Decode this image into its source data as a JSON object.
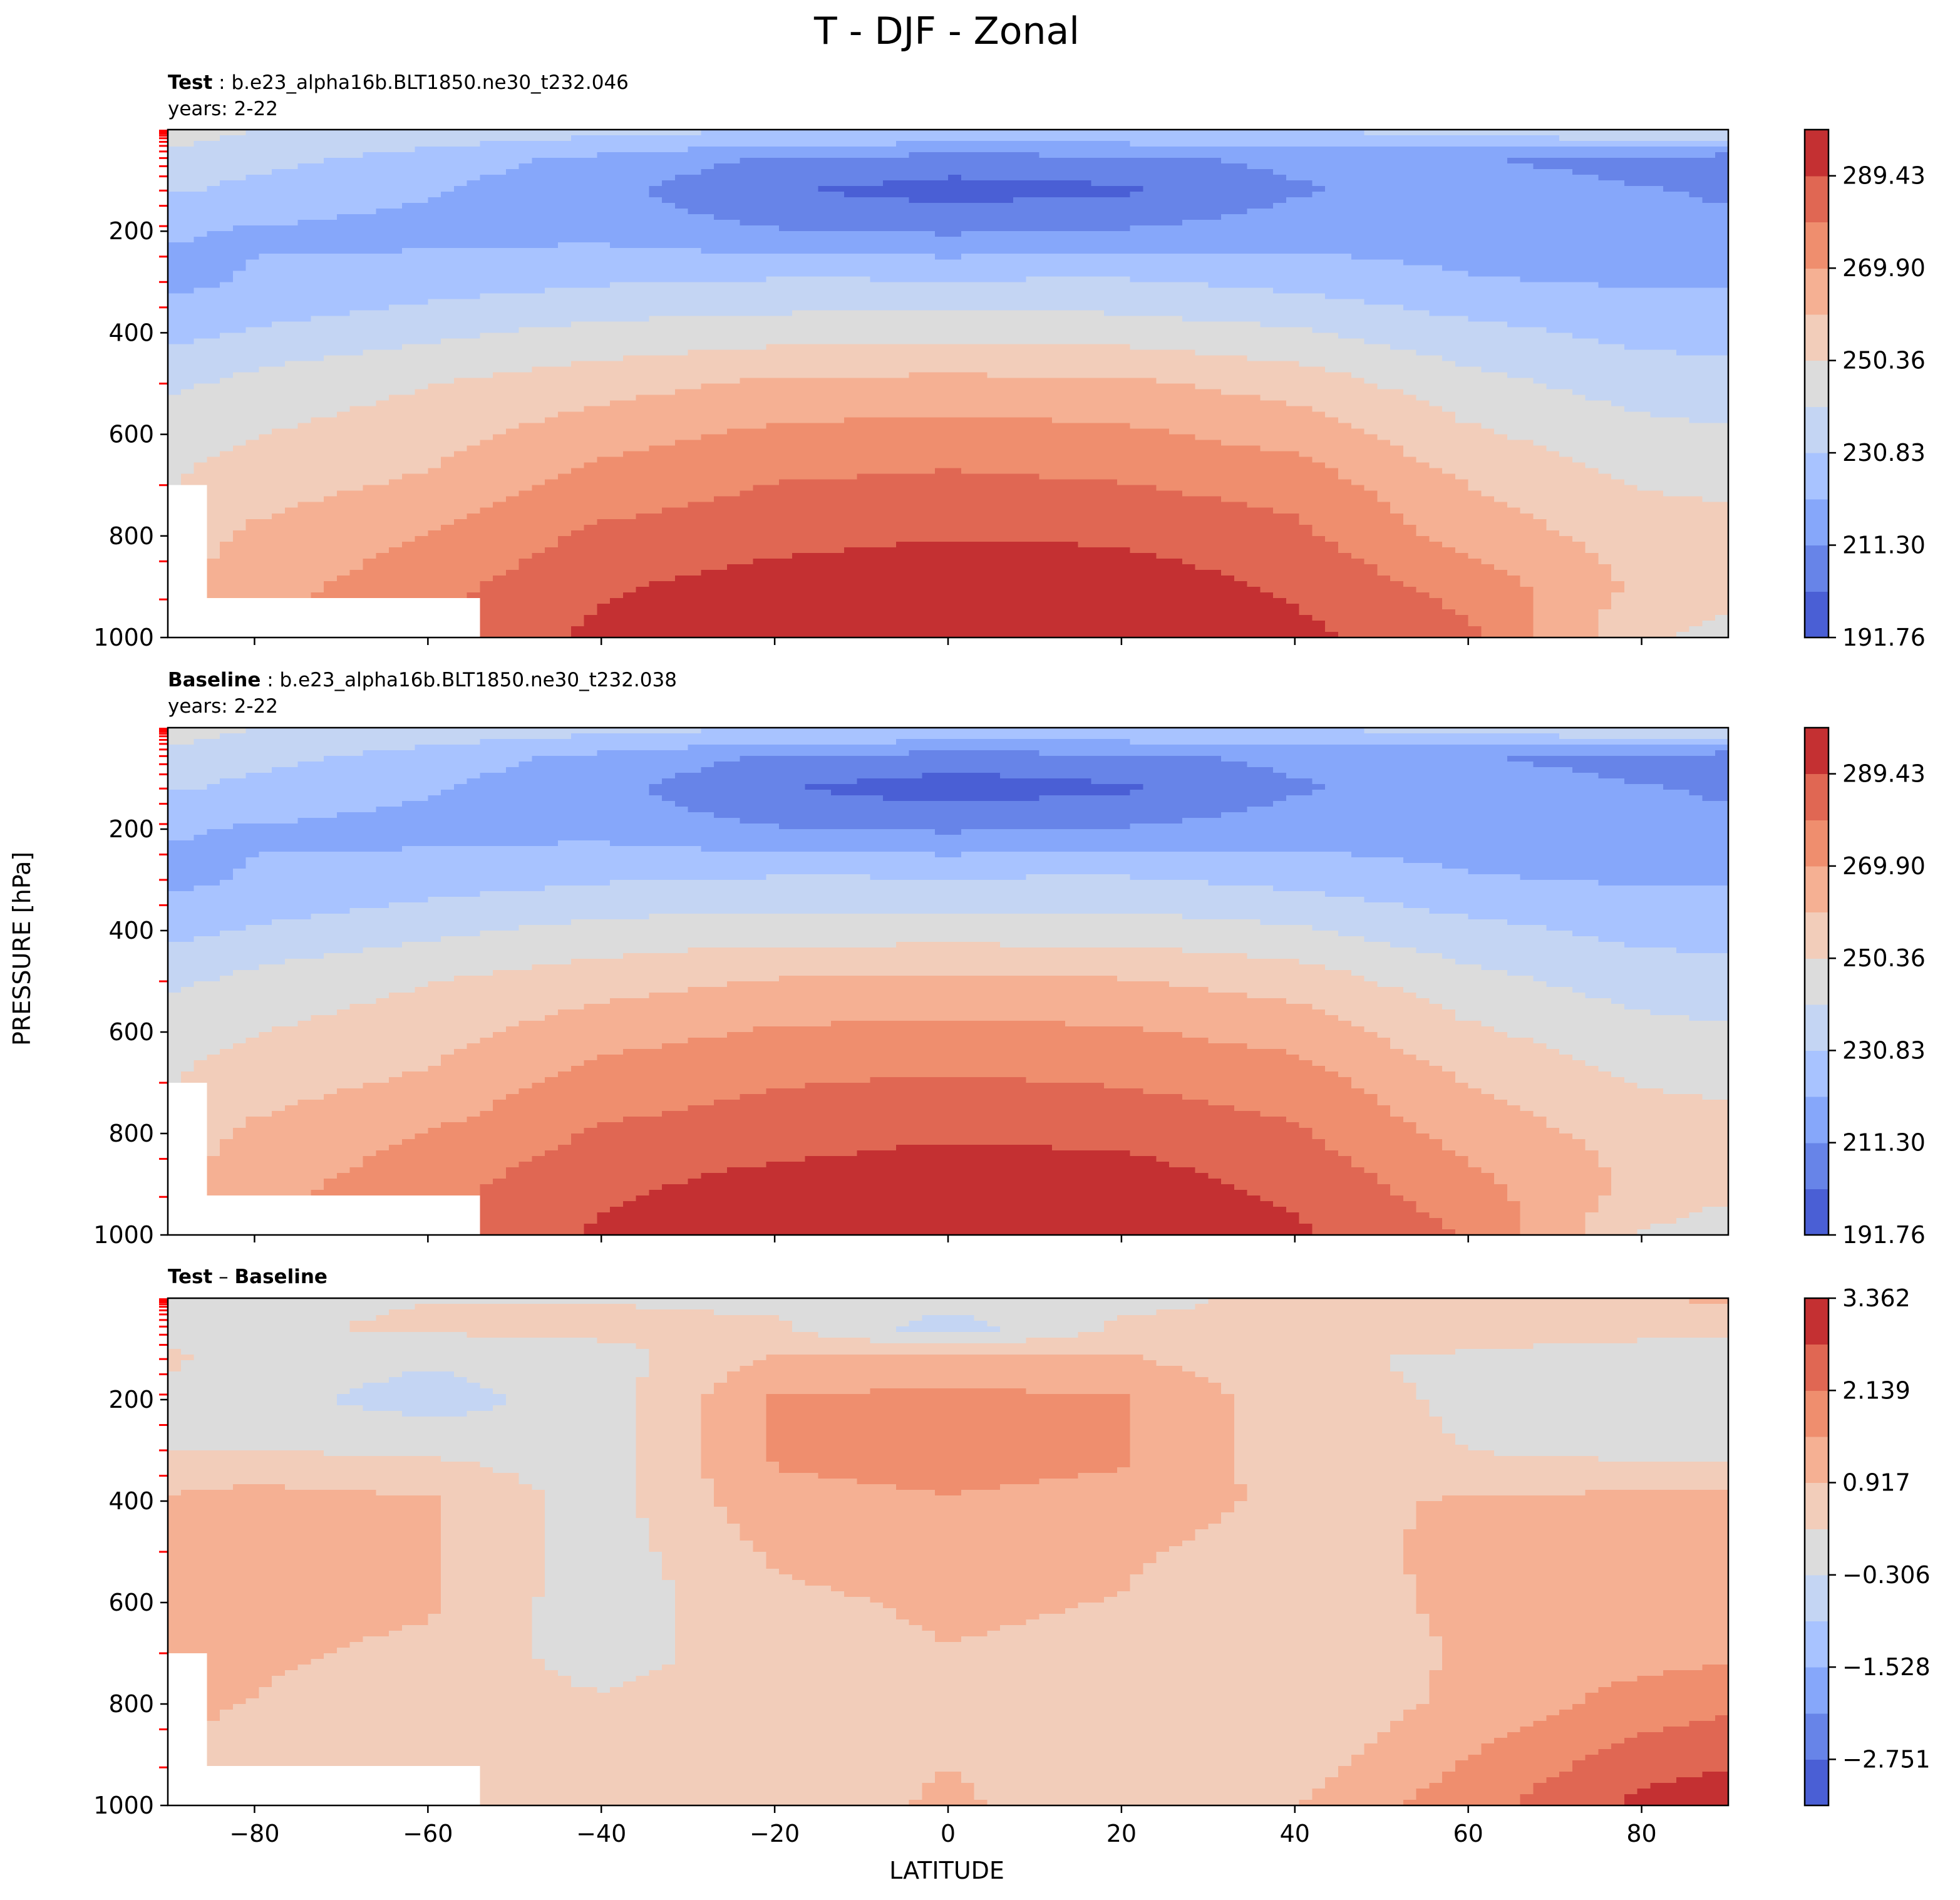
{
  "figure": {
    "title": "T - DJF - Zonal",
    "xlabel": "LATITUDE",
    "ylabel": "PRESSURE [hPa]"
  },
  "colors": {
    "test_baseline": [
      "#4a5fd5",
      "#6784e8",
      "#86a7fa",
      "#a8c3ff",
      "#c4d5f3",
      "#dcdcdc",
      "#f2cdba",
      "#f5b093",
      "#ef8e6e",
      "#e06753",
      "#c43032"
    ],
    "diff": [
      "#4a5fd5",
      "#6784e8",
      "#86a7fa",
      "#a8c3ff",
      "#c4d5f3",
      "#dcdcdc",
      "#f2cdba",
      "#f5b093",
      "#ef8e6e",
      "#e06753",
      "#c43032"
    ],
    "missing": "#ffffff",
    "level_ticks": "#ff0000"
  },
  "chart_data": [
    {
      "type": "heatmap",
      "name": "test",
      "label_bold": "Test",
      "label_sep": " : ",
      "case": "b.e23_alpha16b.BLT1850.ne30_t232.046",
      "years": "years: 2-22",
      "xlim": [
        -90,
        90
      ],
      "ylim": [
        1000,
        0
      ],
      "x_ticks": [
        -80,
        -60,
        -40,
        -20,
        0,
        20,
        40,
        60,
        80
      ],
      "y_ticks": [
        200,
        400,
        600,
        800,
        1000
      ],
      "y_tick_labels": [
        "200",
        "400",
        "600",
        "800",
        "1000"
      ],
      "colorbar_min": 191.76,
      "colorbar_max": 299.2,
      "colorbar_ticks": [
        191.76,
        211.3,
        230.83,
        250.36,
        269.9,
        289.43
      ],
      "colorbar_tick_labels": [
        "191.76",
        "211.30",
        "230.83",
        "250.36",
        "269.90",
        "289.43"
      ],
      "field": {
        "lat": [
          -90,
          -80,
          -60,
          -40,
          -20,
          0,
          20,
          40,
          60,
          80,
          90
        ],
        "lev": [
          10,
          60,
          120,
          200,
          300,
          400,
          500,
          600,
          700,
          800,
          900,
          1000
        ],
        "values": [
          [
            244,
            240,
            236,
            232,
            230,
            228,
            228,
            230,
            232,
            236,
            238
          ],
          [
            238,
            234,
            226,
            218,
            210,
            206,
            208,
            214,
            212,
            208,
            204
          ],
          [
            232,
            228,
            222,
            214,
            202,
            198,
            200,
            210,
            216,
            212,
            210
          ],
          [
            222,
            220,
            218,
            218,
            212,
            210,
            212,
            216,
            216,
            214,
            214
          ],
          [
            218,
            222,
            226,
            230,
            232,
            232,
            232,
            228,
            222,
            220,
            220
          ],
          [
            228,
            232,
            238,
            244,
            246,
            247,
            246,
            242,
            234,
            228,
            228
          ],
          [
            238,
            244,
            250,
            256,
            262,
            263,
            262,
            256,
            244,
            236,
            234
          ],
          [
            246,
            250,
            256,
            266,
            272,
            274,
            272,
            266,
            252,
            244,
            242
          ],
          [
            250,
            256,
            262,
            274,
            280,
            282,
            280,
            276,
            260,
            250,
            248
          ],
          [
            254,
            262,
            270,
            282,
            286,
            289,
            288,
            282,
            266,
            256,
            254
          ],
          [
            260,
            266,
            276,
            288,
            294,
            297,
            295,
            288,
            276,
            258,
            256
          ],
          [
            264,
            270,
            280,
            292,
            298,
            300,
            300,
            292,
            282,
            252,
            246
          ]
        ],
        "missing": [
          {
            "lat_max": -85,
            "lev_min": 700
          },
          {
            "lat_max": -54,
            "lev_min": 925
          }
        ]
      }
    },
    {
      "type": "heatmap",
      "name": "baseline",
      "label_bold": "Baseline",
      "label_sep": " : ",
      "case": "b.e23_alpha16b.BLT1850.ne30_t232.038",
      "years": "years: 2-22",
      "xlim": [
        -90,
        90
      ],
      "ylim": [
        1000,
        0
      ],
      "x_ticks": [
        -80,
        -60,
        -40,
        -20,
        0,
        20,
        40,
        60,
        80
      ],
      "y_ticks": [
        200,
        400,
        600,
        800,
        1000
      ],
      "y_tick_labels": [
        "200",
        "400",
        "600",
        "800",
        "1000"
      ],
      "colorbar_min": 191.76,
      "colorbar_max": 299.2,
      "colorbar_ticks": [
        191.76,
        211.3,
        230.83,
        250.36,
        269.9,
        289.43
      ],
      "colorbar_tick_labels": [
        "191.76",
        "211.30",
        "230.83",
        "250.36",
        "269.90",
        "289.43"
      ],
      "field": {
        "lat": [
          -90,
          -80,
          -60,
          -40,
          -20,
          0,
          20,
          40,
          60,
          80,
          90
        ],
        "lev": [
          10,
          60,
          120,
          200,
          300,
          400,
          500,
          600,
          700,
          800,
          900,
          1000
        ],
        "values": [
          [
            244,
            240,
            236,
            232,
            230,
            228,
            228,
            230,
            232,
            236,
            238
          ],
          [
            238,
            234,
            226,
            218,
            210,
            206,
            208,
            214,
            212,
            208,
            204
          ],
          [
            232,
            228,
            222,
            214,
            202,
            197,
            200,
            210,
            216,
            212,
            210
          ],
          [
            222,
            220,
            218,
            218,
            212,
            210,
            212,
            216,
            216,
            214,
            214
          ],
          [
            218,
            222,
            226,
            230,
            232,
            232,
            232,
            228,
            222,
            220,
            220
          ],
          [
            228,
            232,
            238,
            244,
            246,
            246,
            246,
            242,
            234,
            228,
            228
          ],
          [
            238,
            244,
            250,
            256,
            261,
            262,
            261,
            256,
            244,
            236,
            234
          ],
          [
            246,
            250,
            256,
            266,
            271,
            273,
            271,
            266,
            252,
            244,
            242
          ],
          [
            250,
            256,
            262,
            274,
            279,
            281,
            279,
            275,
            260,
            250,
            248
          ],
          [
            254,
            262,
            270,
            281,
            285,
            288,
            287,
            281,
            266,
            256,
            254
          ],
          [
            260,
            266,
            276,
            287,
            293,
            296,
            294,
            287,
            273,
            258,
            254
          ],
          [
            264,
            270,
            280,
            291,
            297,
            299,
            299,
            291,
            279,
            250,
            244
          ]
        ],
        "missing": [
          {
            "lat_max": -85,
            "lev_min": 700
          },
          {
            "lat_max": -54,
            "lev_min": 925
          }
        ]
      }
    },
    {
      "type": "heatmap",
      "name": "difference",
      "label_bold_a": "Test",
      "label_op": " – ",
      "label_bold_b": "Baseline",
      "xlim": [
        -90,
        90
      ],
      "ylim": [
        1000,
        0
      ],
      "x_ticks": [
        -80,
        -60,
        -40,
        -20,
        0,
        20,
        40,
        60,
        80
      ],
      "x_tick_labels": [
        "−80",
        "−60",
        "−40",
        "−20",
        "0",
        "20",
        "40",
        "60",
        "80"
      ],
      "y_ticks": [
        200,
        400,
        600,
        800,
        1000
      ],
      "y_tick_labels": [
        "200",
        "400",
        "600",
        "800",
        "1000"
      ],
      "colorbar_min": -3.362,
      "colorbar_max": 3.362,
      "colorbar_ticks": [
        -2.751,
        -1.528,
        -0.306,
        0.917,
        2.139,
        3.362
      ],
      "colorbar_tick_labels": [
        "−2.751",
        "−1.528",
        "−0.306",
        "0.917",
        "2.139",
        "3.362"
      ],
      "field": {
        "lat": [
          -90,
          -80,
          -60,
          -40,
          -20,
          0,
          20,
          40,
          60,
          80,
          90
        ],
        "lev": [
          10,
          60,
          120,
          200,
          300,
          400,
          500,
          600,
          700,
          800,
          900,
          1000
        ],
        "values": [
          [
            0.1,
            0.2,
            0.3,
            0.3,
            0.2,
            -0.1,
            0.2,
            0.4,
            0.6,
            0.8,
            1.0
          ],
          [
            0.1,
            0.2,
            0.4,
            0.5,
            0.4,
            -0.6,
            0.4,
            0.5,
            0.6,
            0.5,
            0.4
          ],
          [
            0.4,
            0.1,
            -0.2,
            0.0,
            1.0,
            1.1,
            1.0,
            0.4,
            0.2,
            0.0,
            -0.1
          ],
          [
            0.1,
            -0.1,
            -0.6,
            0.0,
            1.6,
            1.7,
            1.6,
            0.6,
            0.2,
            -0.1,
            -0.1
          ],
          [
            0.3,
            0.3,
            0.2,
            0.0,
            1.6,
            1.7,
            1.6,
            0.6,
            0.3,
            0.1,
            0.0
          ],
          [
            1.0,
            1.2,
            1.0,
            0.0,
            1.4,
            1.5,
            1.4,
            0.7,
            1.0,
            1.1,
            1.1
          ],
          [
            1.1,
            1.2,
            1.0,
            0.0,
            1.0,
            1.2,
            1.0,
            0.6,
            1.1,
            1.2,
            1.2
          ],
          [
            1.1,
            1.1,
            1.0,
            -0.1,
            0.8,
            1.0,
            0.9,
            0.5,
            1.1,
            1.2,
            1.2
          ],
          [
            1.0,
            1.0,
            0.8,
            0.0,
            0.7,
            0.9,
            0.8,
            0.4,
            1.0,
            1.3,
            1.4
          ],
          [
            1.0,
            0.9,
            0.6,
            0.4,
            0.6,
            0.8,
            0.7,
            0.4,
            1.1,
            1.8,
            2.0
          ],
          [
            0.9,
            0.8,
            0.6,
            0.5,
            0.6,
            0.9,
            0.6,
            0.6,
            1.5,
            2.4,
            2.6
          ],
          [
            0.9,
            0.8,
            0.6,
            0.5,
            0.6,
            1.0,
            0.6,
            0.9,
            1.9,
            2.9,
            3.2
          ]
        ],
        "missing": [
          {
            "lat_max": -85,
            "lev_min": 700
          },
          {
            "lat_max": -54,
            "lev_min": 925
          }
        ]
      }
    }
  ]
}
